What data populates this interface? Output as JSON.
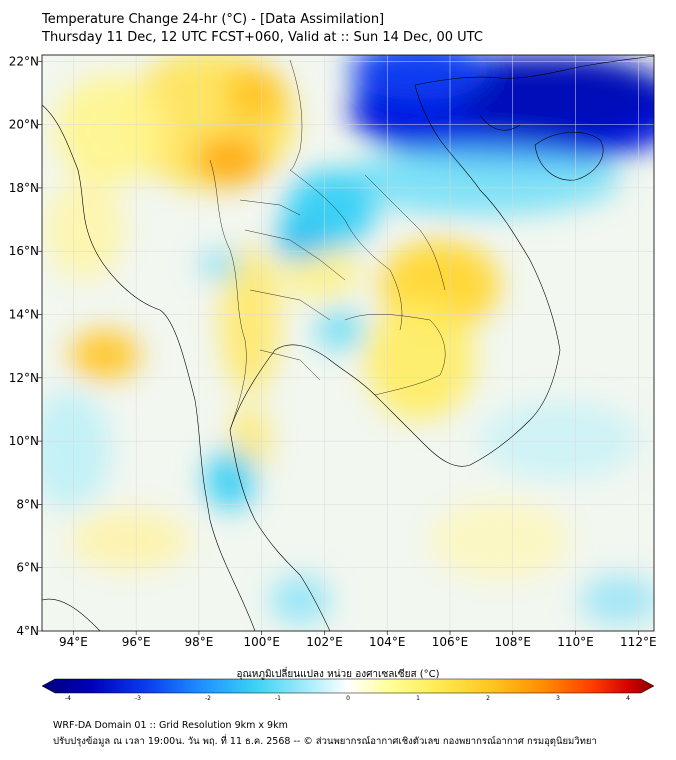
{
  "header": {
    "title_line1": "Temperature Change 24-hr (°C) - [Data Assimilation]",
    "title_line2": "Thursday 11 Dec, 12 UTC FCST+060, Valid at :: Sun 14 Dec, 00 UTC"
  },
  "map": {
    "lon_ticks": [
      "94°E",
      "96°E",
      "98°E",
      "100°E",
      "102°E",
      "104°E",
      "106°E",
      "108°E",
      "110°E",
      "112°E"
    ],
    "lat_ticks": [
      "22°N",
      "20°N",
      "18°N",
      "16°N",
      "14°N",
      "12°N",
      "10°N",
      "8°N",
      "6°N",
      "4°N"
    ],
    "lon_values": [
      94,
      96,
      98,
      100,
      102,
      104,
      106,
      108,
      110,
      112
    ],
    "lat_values": [
      22,
      20,
      18,
      16,
      14,
      12,
      10,
      8,
      6,
      4
    ],
    "extent": {
      "lon_min": 93,
      "lon_max": 112.5,
      "lat_min": 4,
      "lat_max": 22.2
    }
  },
  "colorbar": {
    "label": "อุณหภูมิเปลี่ยนแปลง หน่วย องศาเซลเซียส (°C)",
    "ticks": [
      "-4",
      "-3",
      "-2",
      "-1",
      "0",
      "1",
      "2",
      "3",
      "4"
    ],
    "tick_values": [
      -4,
      -3,
      -2,
      -1,
      0,
      1,
      2,
      3,
      4
    ],
    "colors": [
      "#00007a",
      "#0000b8",
      "#0a3cf0",
      "#1e90ff",
      "#3cd2f5",
      "#a0ecfa",
      "#ffffff",
      "#ffff96",
      "#ffea50",
      "#ffc21e",
      "#ff8c00",
      "#ff3c00",
      "#d20000",
      "#8b0000"
    ]
  },
  "footer": {
    "line1": "WRF-DA Domain 01 :: Grid Resolution 9km x 9km",
    "line2": "ปรับปรุงข้อมูล ณ เวลา 19:00น. วัน พฤ. ที่ 11 ธ.ค. 2568 -- © ส่วนพยากรณ์อากาศเชิงตัวเลข กองพยากรณ์อากาศ กรมอุตุนิยมวิทยา"
  }
}
